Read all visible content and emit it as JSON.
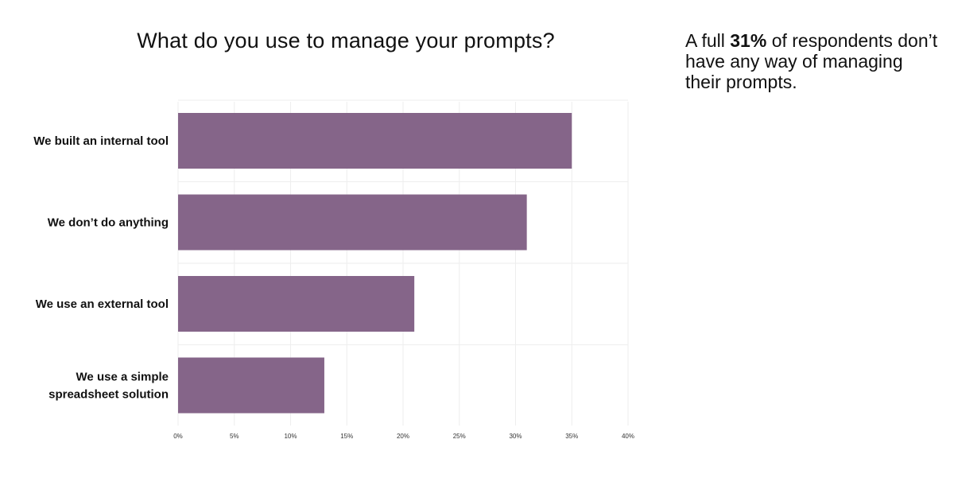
{
  "chart_data": {
    "type": "bar",
    "orientation": "horizontal",
    "title": "What do you use to manage your prompts?",
    "categories": [
      [
        "We built an internal tool"
      ],
      [
        "We don’t do anything"
      ],
      [
        "We use an external tool"
      ],
      [
        "We use a simple",
        "spreadsheet solution"
      ]
    ],
    "values": [
      35,
      31,
      21,
      13
    ],
    "x_ticks": [
      "0%",
      "5%",
      "10%",
      "15%",
      "20%",
      "25%",
      "30%",
      "35%",
      "40%"
    ],
    "xlim": [
      0,
      40
    ],
    "xlabel": "",
    "ylabel": "",
    "grid": true,
    "bar_color": "#856589",
    "grid_color": "#eeeeee"
  },
  "callout": {
    "prefix": "A full ",
    "highlight": "31%",
    "suffix": " of respondents don’t have any way of managing their prompts."
  }
}
